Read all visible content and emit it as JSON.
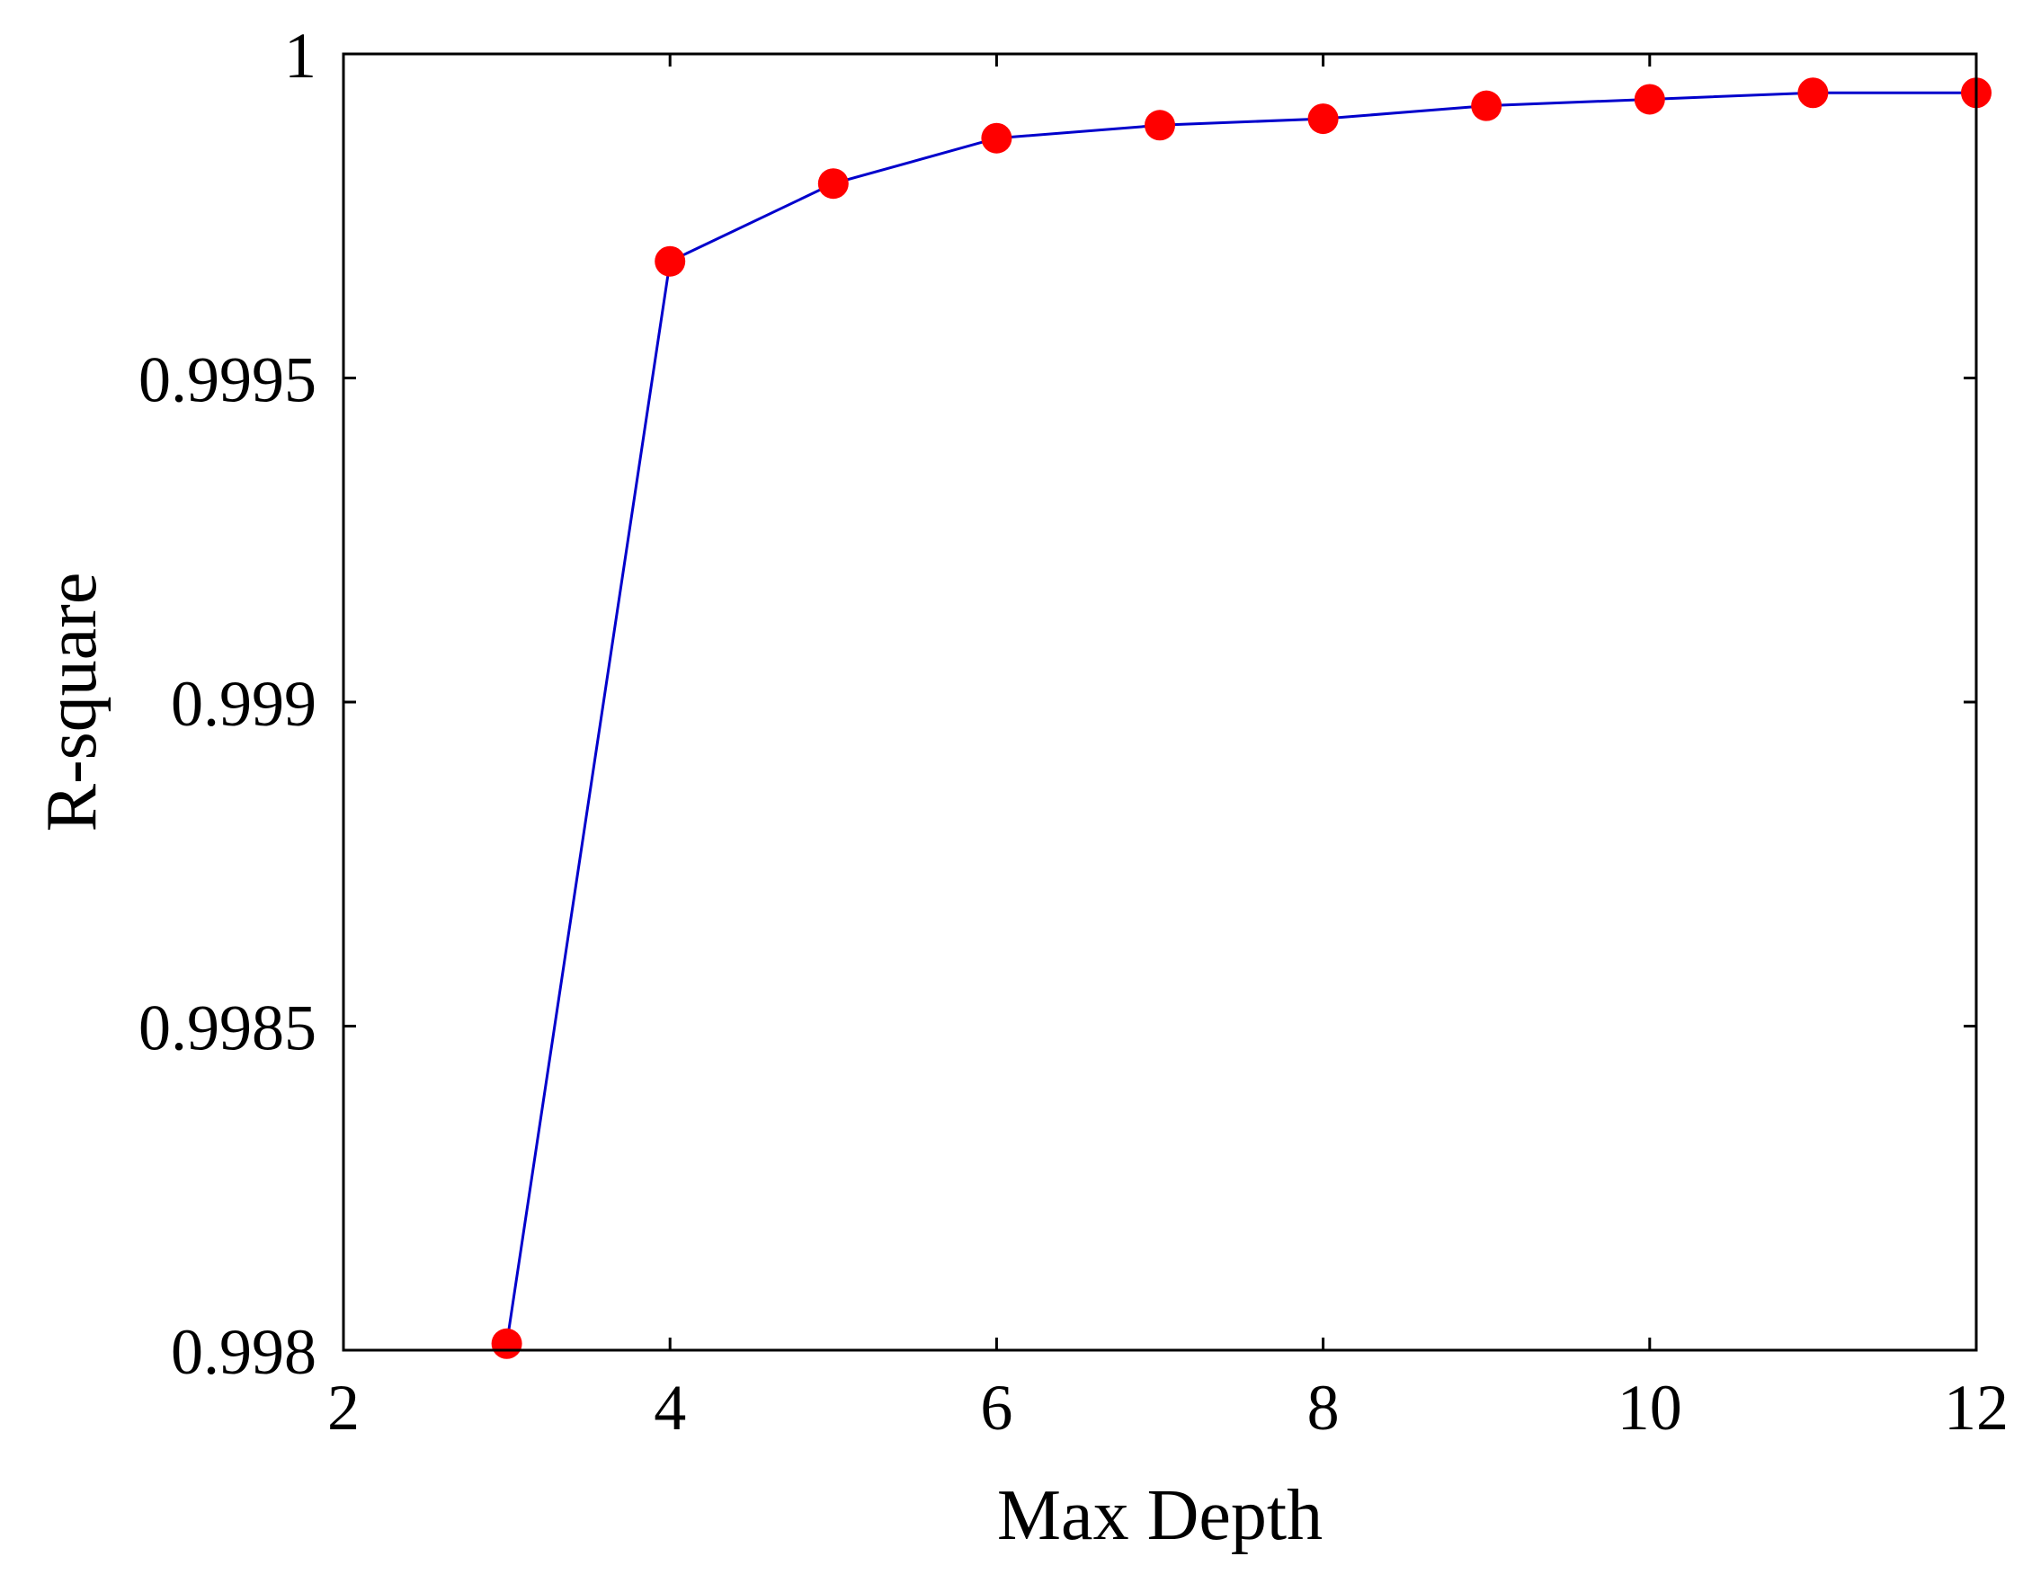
{
  "chart_data": {
    "type": "line",
    "title": "",
    "xlabel": "Max Depth",
    "ylabel": "R-square",
    "xlim": [
      2,
      12
    ],
    "ylim": [
      0.998,
      1
    ],
    "xticks": [
      2,
      4,
      6,
      8,
      10,
      12
    ],
    "xtick_labels": [
      "2",
      "4",
      "6",
      "8",
      "10",
      "12"
    ],
    "yticks": [
      0.998,
      0.9985,
      0.999,
      0.9995,
      1
    ],
    "ytick_labels": [
      "0.998",
      "0.9985",
      "0.999",
      "0.9995",
      "1"
    ],
    "grid": false,
    "legend": "none",
    "series": [
      {
        "x": [
          3,
          4,
          5,
          6,
          7,
          8,
          9,
          10,
          11,
          12
        ],
        "y": [
          0.99801,
          0.99968,
          0.9998,
          0.99987,
          0.99989,
          0.9999,
          0.99992,
          0.99993,
          0.99994,
          0.99994
        ],
        "line_color": "#0000cc",
        "marker_color": "#ff0000",
        "marker": "circle"
      }
    ]
  }
}
